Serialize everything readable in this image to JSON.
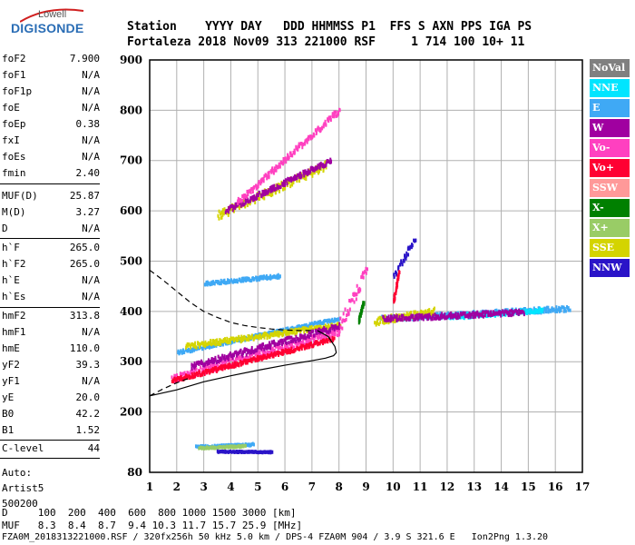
{
  "logo": {
    "top": "Lowell",
    "main": "DIGISONDE"
  },
  "header": {
    "row1": "Station    YYYY DAY   DDD HHMMSS P1  FFS S AXN PPS IGA PS",
    "row2": "Fortaleza 2018 Nov09 313 221000 RSF     1 714 100 10+ 11"
  },
  "params": [
    {
      "name": "foF2",
      "value": "7.900"
    },
    {
      "name": "foF1",
      "value": "N/A"
    },
    {
      "name": "foF1p",
      "value": "N/A"
    },
    {
      "name": "foE",
      "value": "N/A"
    },
    {
      "name": "foEp",
      "value": "0.38"
    },
    {
      "name": "fxI",
      "value": "N/A"
    },
    {
      "name": "foEs",
      "value": "N/A"
    },
    {
      "name": "fmin",
      "value": "2.40"
    },
    {
      "name": "MUF(D)",
      "value": "25.87"
    },
    {
      "name": "M(D)",
      "value": "3.27"
    },
    {
      "name": "D",
      "value": "N/A"
    },
    {
      "name": "h`F",
      "value": "265.0"
    },
    {
      "name": "h`F2",
      "value": "265.0"
    },
    {
      "name": "h`E",
      "value": "N/A"
    },
    {
      "name": "h`Es",
      "value": "N/A"
    },
    {
      "name": "hmF2",
      "value": "313.8"
    },
    {
      "name": "hmF1",
      "value": "N/A"
    },
    {
      "name": "hmE",
      "value": "110.0"
    },
    {
      "name": "yF2",
      "value": "39.3"
    },
    {
      "name": "yF1",
      "value": "N/A"
    },
    {
      "name": "yE",
      "value": "20.0"
    },
    {
      "name": "B0",
      "value": "42.2"
    },
    {
      "name": "B1",
      "value": "1.52"
    },
    {
      "name": "C-level",
      "value": "44"
    }
  ],
  "auto": {
    "line1": "Auto:",
    "line2": "Artist5",
    "line3": "500200"
  },
  "legend": [
    {
      "label": "NoVal",
      "bg": "#808080",
      "fg": "#ffffff"
    },
    {
      "label": "NNE",
      "bg": "#00e5ff",
      "fg": "#ffffff"
    },
    {
      "label": "E",
      "bg": "#3fa9f5",
      "fg": "#ffffff"
    },
    {
      "label": "W",
      "bg": "#a000a0",
      "fg": "#ffffff"
    },
    {
      "label": "Vo-",
      "bg": "#ff40c0",
      "fg": "#ffffff"
    },
    {
      "label": "Vo+",
      "bg": "#ff0033",
      "fg": "#ffffff"
    },
    {
      "label": "SSW",
      "bg": "#ff9999",
      "fg": "#ffffff"
    },
    {
      "label": "X-",
      "bg": "#008000",
      "fg": "#ffffff"
    },
    {
      "label": "X+",
      "bg": "#99cc66",
      "fg": "#ffffff"
    },
    {
      "label": "SSE",
      "bg": "#d4d400",
      "fg": "#ffffff"
    },
    {
      "label": "NNW",
      "bg": "#2a14c8",
      "fg": "#ffffff"
    }
  ],
  "bottom": {
    "line1": "D     100  200  400  600  800 1000 1500 3000 [km]",
    "line2": "MUF   8.3  8.4  8.7  9.4 10.3 11.7 15.7 25.9 [MHz]",
    "line3": "FZA0M_2018313221000.RSF / 320fx256h 50 kHz 5.0 km / DPS-4 FZA0M 904 / 3.9 S 321.6 E   Ion2Png 1.3.20"
  },
  "chart_data": {
    "type": "scatter",
    "xlim": [
      1,
      17
    ],
    "ylim": [
      80,
      900
    ],
    "x_ticks": [
      1,
      2,
      3,
      4,
      5,
      6,
      7,
      8,
      9,
      10,
      11,
      12,
      13,
      14,
      15,
      16,
      17
    ],
    "y_ticks": [
      80,
      200,
      300,
      400,
      500,
      600,
      700,
      800,
      900
    ],
    "grid": true,
    "traces": [
      {
        "color": "#3fa9f5",
        "from": [
          2.0,
          318
        ],
        "to": [
          8.0,
          385
        ],
        "spread": 6
      },
      {
        "color": "#d4d400",
        "from": [
          2.3,
          330
        ],
        "to": [
          8.0,
          372
        ],
        "spread": 10
      },
      {
        "color": "#ff40c0",
        "from": [
          1.8,
          265
        ],
        "to": [
          8.0,
          360
        ],
        "spread": 14
      },
      {
        "color": "#ff0033",
        "from": [
          1.8,
          262
        ],
        "to": [
          7.8,
          345
        ],
        "spread": 8
      },
      {
        "color": "#a000a0",
        "from": [
          2.5,
          290
        ],
        "to": [
          8.0,
          370
        ],
        "spread": 12
      },
      {
        "color": "#3fa9f5",
        "from": [
          3.0,
          455
        ],
        "to": [
          5.8,
          470
        ],
        "spread": 6
      },
      {
        "color": "#3fa9f5",
        "from": [
          9.5,
          385
        ],
        "to": [
          16.5,
          405
        ],
        "spread": 10
      },
      {
        "color": "#00e5ff",
        "from": [
          12.0,
          388
        ],
        "to": [
          15.5,
          402
        ],
        "spread": 8
      },
      {
        "color": "#d4d400",
        "from": [
          9.3,
          380
        ],
        "to": [
          11.5,
          400
        ],
        "spread": 14
      },
      {
        "color": "#a000a0",
        "from": [
          9.6,
          385
        ],
        "to": [
          14.8,
          398
        ],
        "spread": 10
      },
      {
        "color": "#ff40c0",
        "from": [
          8.0,
          370
        ],
        "to": [
          9.0,
          480
        ],
        "spread": 26
      },
      {
        "color": "#d4d400",
        "from": [
          3.5,
          590
        ],
        "to": [
          7.5,
          690
        ],
        "spread": 16
      },
      {
        "color": "#a000a0",
        "from": [
          3.8,
          600
        ],
        "to": [
          7.7,
          700
        ],
        "spread": 10
      },
      {
        "color": "#ff40c0",
        "from": [
          4.2,
          615
        ],
        "to": [
          8.0,
          800
        ],
        "spread": 12
      },
      {
        "color": "#3fa9f5",
        "from": [
          2.7,
          130
        ],
        "to": [
          4.8,
          135
        ],
        "spread": 4
      },
      {
        "color": "#99cc66",
        "from": [
          2.8,
          128
        ],
        "to": [
          4.5,
          132
        ],
        "spread": 3
      },
      {
        "color": "#2a14c8",
        "from": [
          3.5,
          121
        ],
        "to": [
          5.5,
          120
        ],
        "spread": 2
      },
      {
        "color": "#2a14c8",
        "from": [
          10.0,
          470
        ],
        "to": [
          10.8,
          545
        ],
        "spread": 12
      },
      {
        "color": "#ff0033",
        "from": [
          10.0,
          420
        ],
        "to": [
          10.2,
          480
        ],
        "spread": 6
      },
      {
        "color": "#008000",
        "from": [
          8.7,
          380
        ],
        "to": [
          8.9,
          420
        ],
        "spread": 6
      }
    ],
    "profile_solid": [
      [
        1.0,
        232
      ],
      [
        2.0,
        244
      ],
      [
        3.0,
        260
      ],
      [
        4.0,
        272
      ],
      [
        5.0,
        283
      ],
      [
        6.0,
        293
      ],
      [
        7.0,
        302
      ],
      [
        7.5,
        307
      ],
      [
        7.8,
        312
      ],
      [
        7.9,
        318
      ],
      [
        7.85,
        330
      ],
      [
        7.6,
        350
      ],
      [
        7.2,
        362
      ]
    ],
    "profile_dashed": [
      [
        1.0,
        482
      ],
      [
        1.5,
        462
      ],
      [
        2.0,
        440
      ],
      [
        2.5,
        418
      ],
      [
        3.0,
        400
      ],
      [
        3.5,
        388
      ],
      [
        4.0,
        378
      ],
      [
        4.5,
        372
      ],
      [
        5.0,
        368
      ],
      [
        5.5,
        365
      ],
      [
        6.0,
        363
      ],
      [
        6.5,
        362
      ],
      [
        7.0,
        362
      ]
    ],
    "profile_lower_dashed": [
      [
        1.0,
        232
      ],
      [
        1.5,
        246
      ],
      [
        2.0,
        258
      ],
      [
        2.5,
        268
      ]
    ]
  }
}
